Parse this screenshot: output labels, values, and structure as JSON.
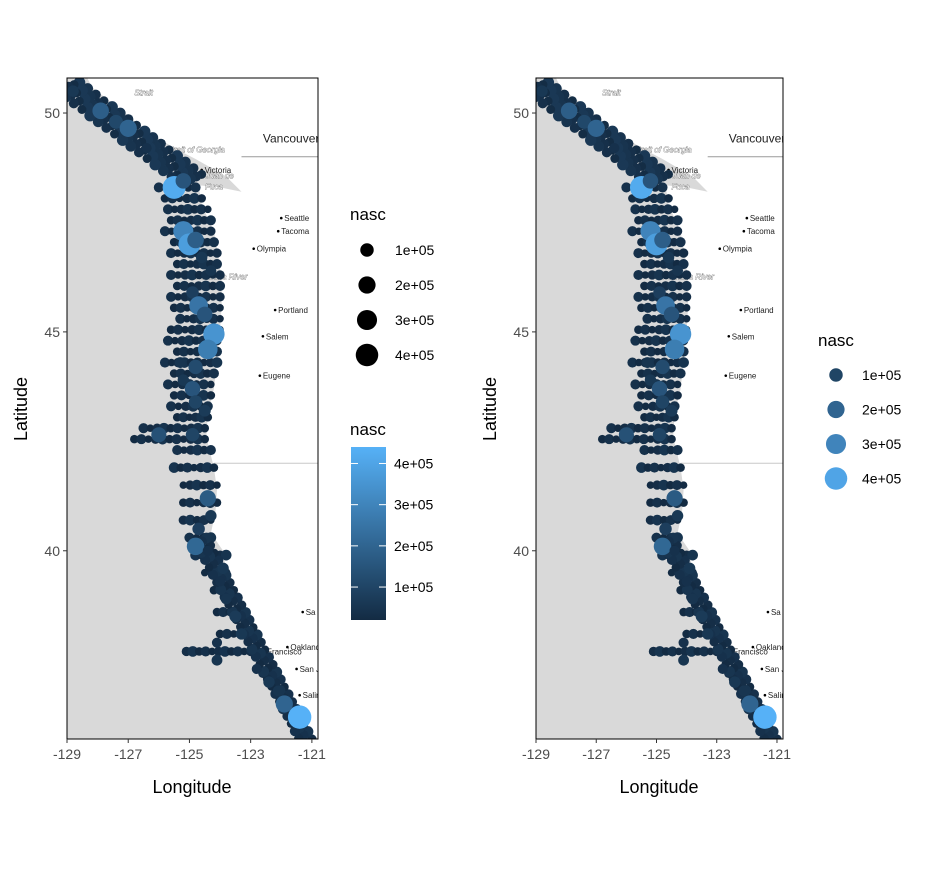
{
  "colors": {
    "ocean": "#d9d9d9",
    "land": "#ffffff",
    "transect": "#ff0000",
    "low": "#132b43",
    "high": "#56b1f7"
  },
  "axes": {
    "xlabel": "Longitude",
    "ylabel": "Latitude",
    "xticks": [
      "-129",
      "-127",
      "-125",
      "-123",
      "-121"
    ],
    "yticks": [
      "50",
      "45",
      "40"
    ],
    "xlim": [
      -129,
      -120.8
    ],
    "ylim": [
      35.7,
      50.8
    ]
  },
  "places": [
    {
      "name": "Vancouver",
      "big": true,
      "lon": -122.6,
      "lat": 49.4
    },
    {
      "name": "Victoria",
      "big": false,
      "lon": -124.6,
      "lat": 48.7
    },
    {
      "name": "Seattle",
      "big": false,
      "lon": -122.0,
      "lat": 47.6
    },
    {
      "name": "Tacoma",
      "big": false,
      "lon": -122.1,
      "lat": 47.3
    },
    {
      "name": "Olympia",
      "big": false,
      "lon": -122.9,
      "lat": 46.9
    },
    {
      "name": "Portland",
      "big": false,
      "lon": -122.2,
      "lat": 45.5
    },
    {
      "name": "Salem",
      "big": false,
      "lon": -122.6,
      "lat": 44.9
    },
    {
      "name": "Eugene",
      "big": false,
      "lon": -122.7,
      "lat": 44.0
    },
    {
      "name": "Oakland",
      "big": false,
      "lon": -121.8,
      "lat": 37.8
    },
    {
      "name": "San Francisco",
      "big": false,
      "lon": -123.1,
      "lat": 37.7
    },
    {
      "name": "San Jo",
      "big": false,
      "lon": -121.5,
      "lat": 37.3
    },
    {
      "name": "Salin",
      "big": false,
      "lon": -121.4,
      "lat": 36.7
    },
    {
      "name": "Sa",
      "big": false,
      "lon": -121.3,
      "lat": 38.6
    }
  ],
  "water_labels": [
    {
      "name": "Strait",
      "lon": -126.5,
      "lat": 50.4
    },
    {
      "name": "Strait of Georgia",
      "lon": -124.8,
      "lat": 49.1
    },
    {
      "name": "Strait of Juan de",
      "lon": -124.5,
      "lat": 48.5
    },
    {
      "name": "Fuca",
      "lon": -124.2,
      "lat": 48.25
    },
    {
      "name": "Columbia River",
      "lon": -124.0,
      "lat": 46.2
    }
  ],
  "chart_data": [
    {
      "type": "scatter",
      "subtype": "bubble map with transects",
      "xlabel": "Longitude",
      "ylabel": "Latitude",
      "xlim": [
        -129,
        -120.8
      ],
      "ylim": [
        35.7,
        50.8
      ],
      "size_legend": {
        "title": "nasc",
        "labels": [
          "1e+05",
          "2e+05",
          "3e+05",
          "4e+05"
        ],
        "values": [
          100000,
          200000,
          300000,
          400000
        ]
      },
      "color_legend": {
        "title": "nasc",
        "labels": [
          "1e+05",
          "2e+05",
          "3e+05",
          "4e+05"
        ],
        "values": [
          100000,
          200000,
          300000,
          400000
        ],
        "range": [
          20000,
          440000
        ]
      },
      "transects": [
        {
          "lat": 48.3,
          "lon_start": -126.0,
          "lon_end": -124.8
        },
        {
          "lat": 48.05,
          "lon_start": -125.8,
          "lon_end": -124.6
        },
        {
          "lat": 47.8,
          "lon_start": -125.7,
          "lon_end": -124.4
        },
        {
          "lat": 47.55,
          "lon_start": -125.6,
          "lon_end": -124.3
        },
        {
          "lat": 47.3,
          "lon_start": -125.8,
          "lon_end": -124.3
        },
        {
          "lat": 47.05,
          "lon_start": -125.5,
          "lon_end": -124.2
        },
        {
          "lat": 46.8,
          "lon_start": -125.6,
          "lon_end": -124.1
        },
        {
          "lat": 46.55,
          "lon_start": -125.4,
          "lon_end": -124.1
        },
        {
          "lat": 46.3,
          "lon_start": -125.6,
          "lon_end": -124.0
        },
        {
          "lat": 46.05,
          "lon_start": -125.4,
          "lon_end": -124.0
        },
        {
          "lat": 45.8,
          "lon_start": -125.6,
          "lon_end": -124.0
        },
        {
          "lat": 45.55,
          "lon_start": -125.5,
          "lon_end": -124.0
        },
        {
          "lat": 45.3,
          "lon_start": -125.3,
          "lon_end": -124.0
        },
        {
          "lat": 45.05,
          "lon_start": -125.6,
          "lon_end": -124.0
        },
        {
          "lat": 44.8,
          "lon_start": -125.7,
          "lon_end": -124.1
        },
        {
          "lat": 44.55,
          "lon_start": -125.4,
          "lon_end": -124.1
        },
        {
          "lat": 44.3,
          "lon_start": -125.8,
          "lon_end": -124.1
        },
        {
          "lat": 44.05,
          "lon_start": -125.5,
          "lon_end": -124.2
        },
        {
          "lat": 43.8,
          "lon_start": -125.7,
          "lon_end": -124.3
        },
        {
          "lat": 43.55,
          "lon_start": -125.5,
          "lon_end": -124.3
        },
        {
          "lat": 43.3,
          "lon_start": -125.6,
          "lon_end": -124.4
        },
        {
          "lat": 43.05,
          "lon_start": -125.4,
          "lon_end": -124.4
        },
        {
          "lat": 42.8,
          "lon_start": -126.5,
          "lon_end": -124.5
        },
        {
          "lat": 42.55,
          "lon_start": -126.8,
          "lon_end": -124.5
        },
        {
          "lat": 42.3,
          "lon_start": -125.4,
          "lon_end": -124.3
        },
        {
          "lat": 41.9,
          "lon_start": -125.5,
          "lon_end": -124.2
        },
        {
          "lat": 41.5,
          "lon_start": -125.2,
          "lon_end": -124.1
        },
        {
          "lat": 41.1,
          "lon_start": -125.2,
          "lon_end": -124.1
        },
        {
          "lat": 40.7,
          "lon_start": -125.2,
          "lon_end": -124.3
        },
        {
          "lat": 40.3,
          "lon_start": -125.0,
          "lon_end": -124.3
        },
        {
          "lat": 39.9,
          "lon_start": -124.8,
          "lon_end": -123.8
        },
        {
          "lat": 39.5,
          "lon_start": -124.5,
          "lon_end": -123.8
        },
        {
          "lat": 39.1,
          "lon_start": -124.2,
          "lon_end": -123.7
        },
        {
          "lat": 38.6,
          "lon_start": -124.1,
          "lon_end": -123.3
        },
        {
          "lat": 38.1,
          "lon_start": -124.0,
          "lon_end": -123.1
        },
        {
          "lat": 37.7,
          "lon_start": -125.1,
          "lon_end": -123.0
        },
        {
          "lat": 37.2,
          "lon_start": -122.6,
          "lon_end": -122.3
        }
      ],
      "points": [
        {
          "lon": -128.8,
          "lat": 50.5,
          "nasc": 60000
        },
        {
          "lon": -127.9,
          "lat": 50.05,
          "nasc": 180000
        },
        {
          "lon": -127.4,
          "lat": 49.8,
          "nasc": 110000
        },
        {
          "lon": -127.0,
          "lat": 49.65,
          "nasc": 200000
        },
        {
          "lon": -126.4,
          "lat": 49.2,
          "nasc": 40000
        },
        {
          "lon": -125.5,
          "lat": 48.3,
          "nasc": 420000
        },
        {
          "lon": -125.2,
          "lat": 48.45,
          "nasc": 150000
        },
        {
          "lon": -125.2,
          "lat": 47.3,
          "nasc": 300000
        },
        {
          "lon": -125.0,
          "lat": 47.0,
          "nasc": 380000
        },
        {
          "lon": -124.8,
          "lat": 47.1,
          "nasc": 180000
        },
        {
          "lon": -124.6,
          "lat": 46.7,
          "nasc": 60000
        },
        {
          "lon": -124.3,
          "lat": 46.4,
          "nasc": 50000
        },
        {
          "lon": -124.9,
          "lat": 45.9,
          "nasc": 80000
        },
        {
          "lon": -124.7,
          "lat": 45.6,
          "nasc": 250000
        },
        {
          "lon": -124.5,
          "lat": 45.4,
          "nasc": 150000
        },
        {
          "lon": -124.2,
          "lat": 44.95,
          "nasc": 350000
        },
        {
          "lon": -124.4,
          "lat": 44.6,
          "nasc": 280000
        },
        {
          "lon": -125.3,
          "lat": 44.3,
          "nasc": 50000
        },
        {
          "lon": -124.8,
          "lat": 44.2,
          "nasc": 120000
        },
        {
          "lon": -125.2,
          "lat": 43.9,
          "nasc": 60000
        },
        {
          "lon": -124.9,
          "lat": 43.7,
          "nasc": 150000
        },
        {
          "lon": -124.8,
          "lat": 43.4,
          "nasc": 100000
        },
        {
          "lon": -124.5,
          "lat": 43.2,
          "nasc": 70000
        },
        {
          "lon": -126.0,
          "lat": 42.65,
          "nasc": 140000
        },
        {
          "lon": -124.9,
          "lat": 42.65,
          "nasc": 100000
        },
        {
          "lon": -124.4,
          "lat": 41.2,
          "nasc": 170000
        },
        {
          "lon": -124.3,
          "lat": 40.8,
          "nasc": 60000
        },
        {
          "lon": -124.7,
          "lat": 40.5,
          "nasc": 80000
        },
        {
          "lon": -124.8,
          "lat": 40.1,
          "nasc": 210000
        },
        {
          "lon": -124.4,
          "lat": 40.0,
          "nasc": 40000
        },
        {
          "lon": -123.9,
          "lat": 39.6,
          "nasc": 60000
        },
        {
          "lon": -124.0,
          "lat": 39.3,
          "nasc": 40000
        },
        {
          "lon": -123.8,
          "lat": 38.9,
          "nasc": 50000
        },
        {
          "lon": -123.5,
          "lat": 38.5,
          "nasc": 70000
        },
        {
          "lon": -123.3,
          "lat": 38.1,
          "nasc": 60000
        },
        {
          "lon": -124.1,
          "lat": 37.9,
          "nasc": 40000
        },
        {
          "lon": -124.1,
          "lat": 37.5,
          "nasc": 50000
        },
        {
          "lon": -122.8,
          "lat": 37.3,
          "nasc": 40000
        },
        {
          "lon": -122.4,
          "lat": 37.0,
          "nasc": 60000
        },
        {
          "lon": -122.1,
          "lat": 36.8,
          "nasc": 50000
        },
        {
          "lon": -121.9,
          "lat": 36.5,
          "nasc": 200000
        },
        {
          "lon": -121.4,
          "lat": 36.2,
          "nasc": 440000
        }
      ]
    },
    {
      "type": "scatter",
      "subtype": "bubble map with transects",
      "xlabel": "Longitude",
      "ylabel": "Latitude",
      "xlim": [
        -129,
        -120.8
      ],
      "ylim": [
        35.7,
        50.8
      ],
      "legend": {
        "title": "nasc",
        "labels": [
          "1e+05",
          "2e+05",
          "3e+05",
          "4e+05"
        ],
        "values": [
          100000,
          200000,
          300000,
          400000
        ]
      },
      "points_same_as_left": true
    }
  ]
}
